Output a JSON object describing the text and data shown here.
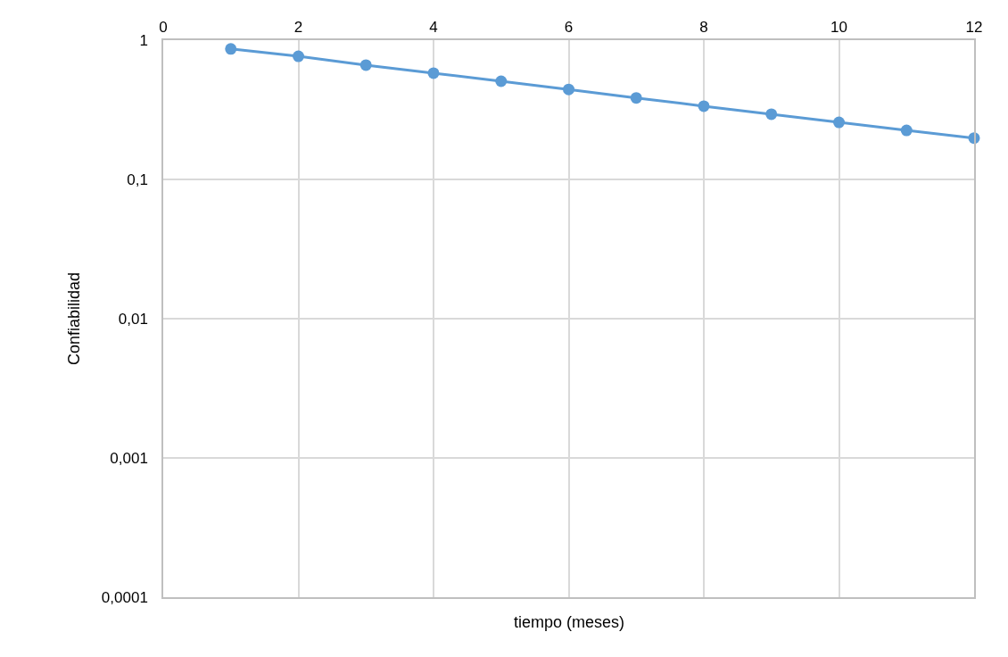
{
  "chart_data": {
    "type": "line",
    "xlabel": "tiempo (meses)",
    "ylabel": "Confiabilidad",
    "x": [
      1,
      2,
      3,
      4,
      5,
      6,
      7,
      8,
      9,
      10,
      11,
      12
    ],
    "series": [
      {
        "color": "#5b9bd5",
        "values": [
          0.865,
          0.766,
          0.662,
          0.58,
          0.507,
          0.443,
          0.385,
          0.336,
          0.294,
          0.257,
          0.225,
          0.198
        ]
      }
    ],
    "xlim": [
      0,
      12
    ],
    "xticks": [
      0,
      2,
      4,
      6,
      8,
      10,
      12
    ],
    "ylim": [
      0.0001,
      1
    ],
    "yticks": [
      {
        "value": 0.0001,
        "label": "0,0001"
      },
      {
        "value": 0.001,
        "label": "0,001"
      },
      {
        "value": 0.01,
        "label": "0,01"
      },
      {
        "value": 0.1,
        "label": "0,1"
      },
      1
    ],
    "log": "y",
    "grid": true,
    "marker": "circle",
    "line_style": "solid"
  }
}
